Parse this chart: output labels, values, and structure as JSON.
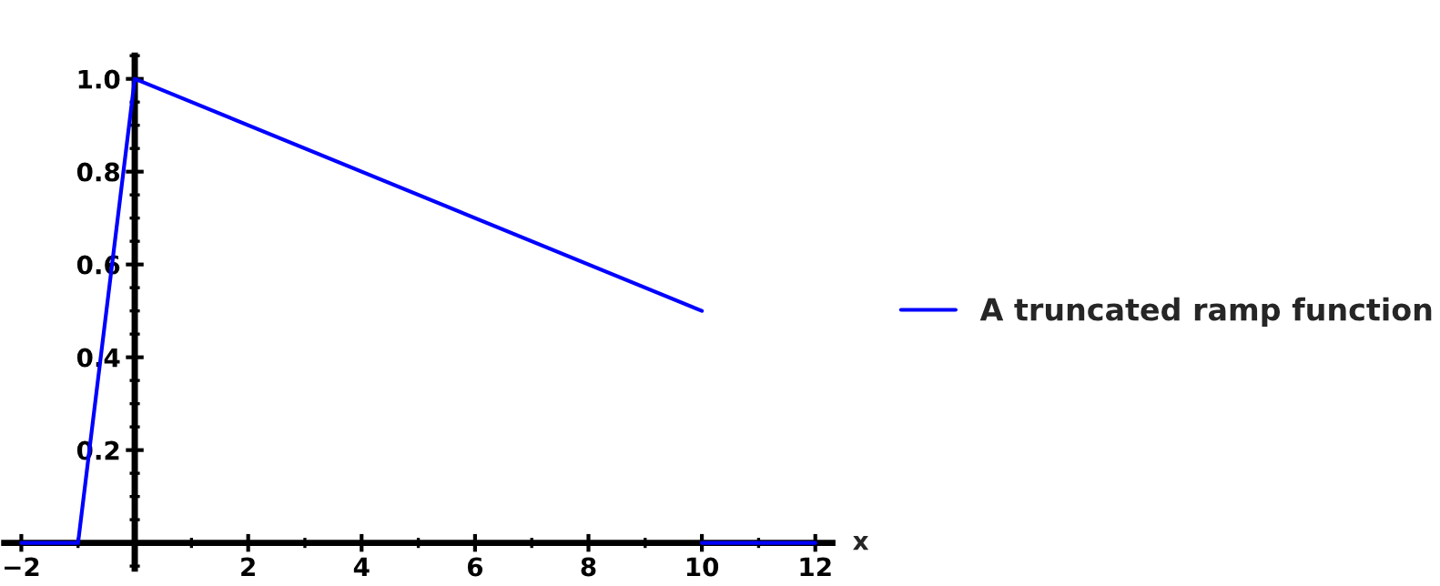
{
  "chart_data": {
    "type": "line",
    "xlabel": "x",
    "legend": "right",
    "grid": false,
    "marker": "none",
    "line_style": "solid",
    "xlim": [
      -2.3,
      12.3
    ],
    "ylim": [
      -0.055,
      1.05
    ],
    "xticks": [
      {
        "value": -2,
        "label": "−2"
      },
      2,
      4,
      6,
      8,
      10,
      12
    ],
    "yticks": [
      0.2,
      0.4,
      0.6,
      0.8,
      {
        "value": 1,
        "label": "1.0"
      }
    ],
    "series": [
      {
        "name": "A truncated ramp function",
        "color": "#0000ff",
        "x": [
          -2,
          -1,
          0,
          10
        ],
        "values": [
          0,
          0,
          1,
          0.5
        ]
      },
      {
        "color": "#0000ff",
        "x": [
          10,
          12
        ],
        "values": [
          0,
          0
        ]
      }
    ]
  }
}
